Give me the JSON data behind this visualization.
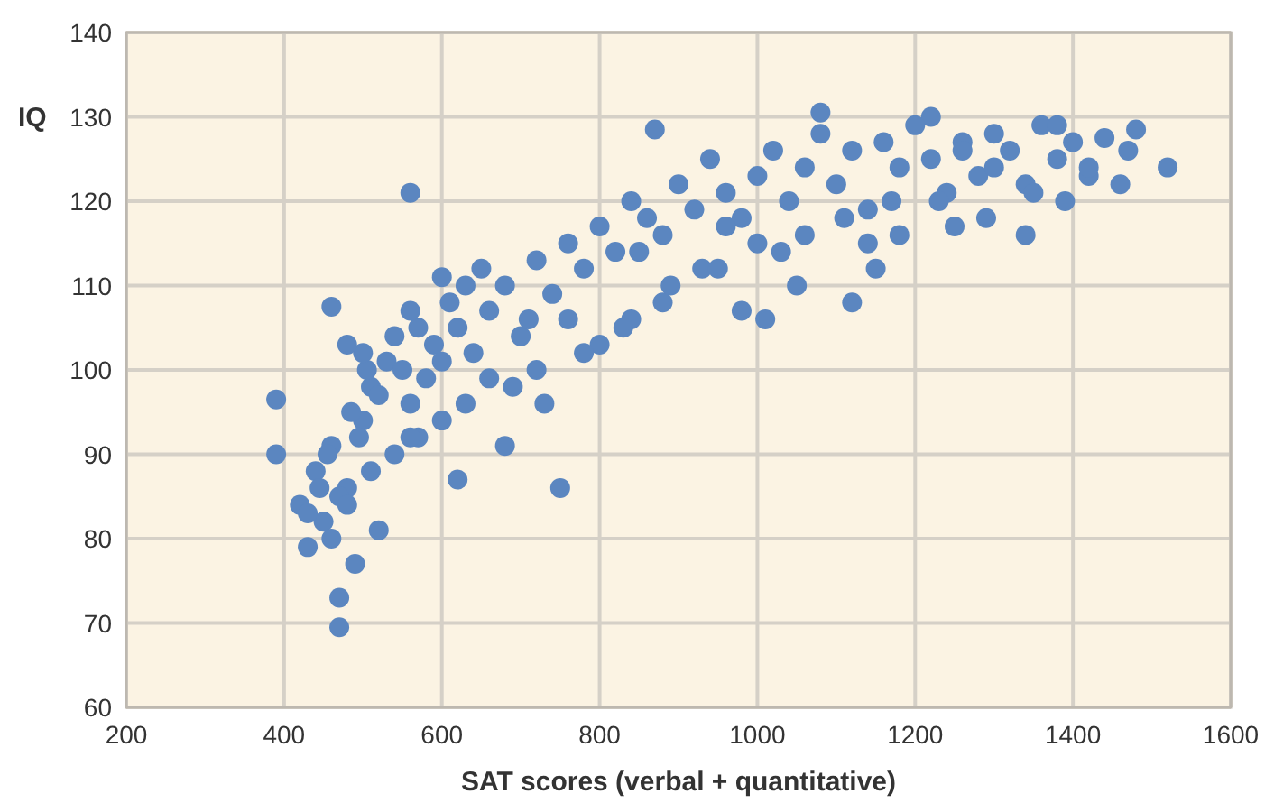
{
  "chart_data": {
    "type": "scatter",
    "xlabel": "SAT scores (verbal + quantitative)",
    "ylabel": "IQ",
    "xlim": [
      200,
      1600
    ],
    "ylim": [
      60,
      140
    ],
    "xticks": [
      200,
      400,
      600,
      800,
      1000,
      1200,
      1400,
      1600
    ],
    "yticks": [
      60,
      70,
      80,
      90,
      100,
      110,
      120,
      130,
      140
    ],
    "grid": true,
    "marker": "circle",
    "series": [
      {
        "color": "#5b86c0",
        "x": [
          390,
          390,
          470,
          470,
          560,
          750,
          1520,
          1480,
          1440,
          1080,
          1220,
          870,
          460,
          520,
          490,
          430,
          420,
          440,
          450,
          460,
          480,
          500,
          510,
          530,
          550,
          570,
          590,
          610,
          630,
          650,
          430,
          445,
          455,
          470,
          485,
          495,
          505,
          520,
          540,
          560,
          580,
          600,
          620,
          640,
          660,
          680,
          700,
          720,
          740,
          760,
          780,
          800,
          820,
          840,
          860,
          880,
          900,
          920,
          940,
          960,
          980,
          1000,
          1020,
          1040,
          1060,
          1080,
          1100,
          1120,
          1140,
          1160,
          1180,
          1200,
          1220,
          1240,
          1260,
          1280,
          1300,
          1320,
          1340,
          1360,
          1380,
          1400,
          1420,
          1460,
          1470,
          1350,
          1300,
          1250,
          1180,
          1150,
          1120,
          1050,
          1010,
          980,
          930,
          880,
          840,
          800,
          760,
          720,
          690,
          660,
          630,
          600,
          570,
          540,
          510,
          480,
          460,
          500,
          560,
          620,
          680,
          730,
          780,
          830,
          890,
          950,
          1000,
          1060,
          1110,
          1170,
          1230,
          1290,
          1340,
          1390,
          1420,
          1380,
          1260,
          1140,
          1030,
          960,
          850,
          710,
          600,
          560,
          480
        ],
        "values": [
          96.5,
          90,
          73,
          69.5,
          121,
          86,
          124,
          128.5,
          127.5,
          130.5,
          130,
          128.5,
          107.5,
          81,
          77,
          79,
          84,
          88,
          82,
          91,
          86,
          94,
          98,
          101,
          100,
          105,
          103,
          108,
          110,
          112,
          83,
          86,
          90,
          85,
          95,
          92,
          100,
          97,
          104,
          96,
          99,
          101,
          105,
          102,
          107,
          110,
          104,
          113,
          109,
          115,
          112,
          117,
          114,
          120,
          118,
          116,
          122,
          119,
          125,
          121,
          118,
          123,
          126,
          120,
          124,
          128,
          122,
          126,
          119,
          127,
          124,
          129,
          125,
          121,
          127,
          123,
          128,
          126,
          122,
          129,
          125,
          127,
          123,
          122,
          126,
          121,
          124,
          117,
          116,
          112,
          108,
          110,
          106,
          107,
          112,
          108,
          106,
          103,
          106,
          100,
          98,
          99,
          96,
          94,
          92,
          90,
          88,
          84,
          80,
          102,
          92,
          87,
          91,
          96,
          102,
          105,
          110,
          112,
          115,
          116,
          118,
          120,
          120,
          118,
          116,
          120,
          124,
          129,
          126,
          115,
          114,
          117,
          114,
          106,
          111,
          107,
          103
        ]
      }
    ]
  }
}
